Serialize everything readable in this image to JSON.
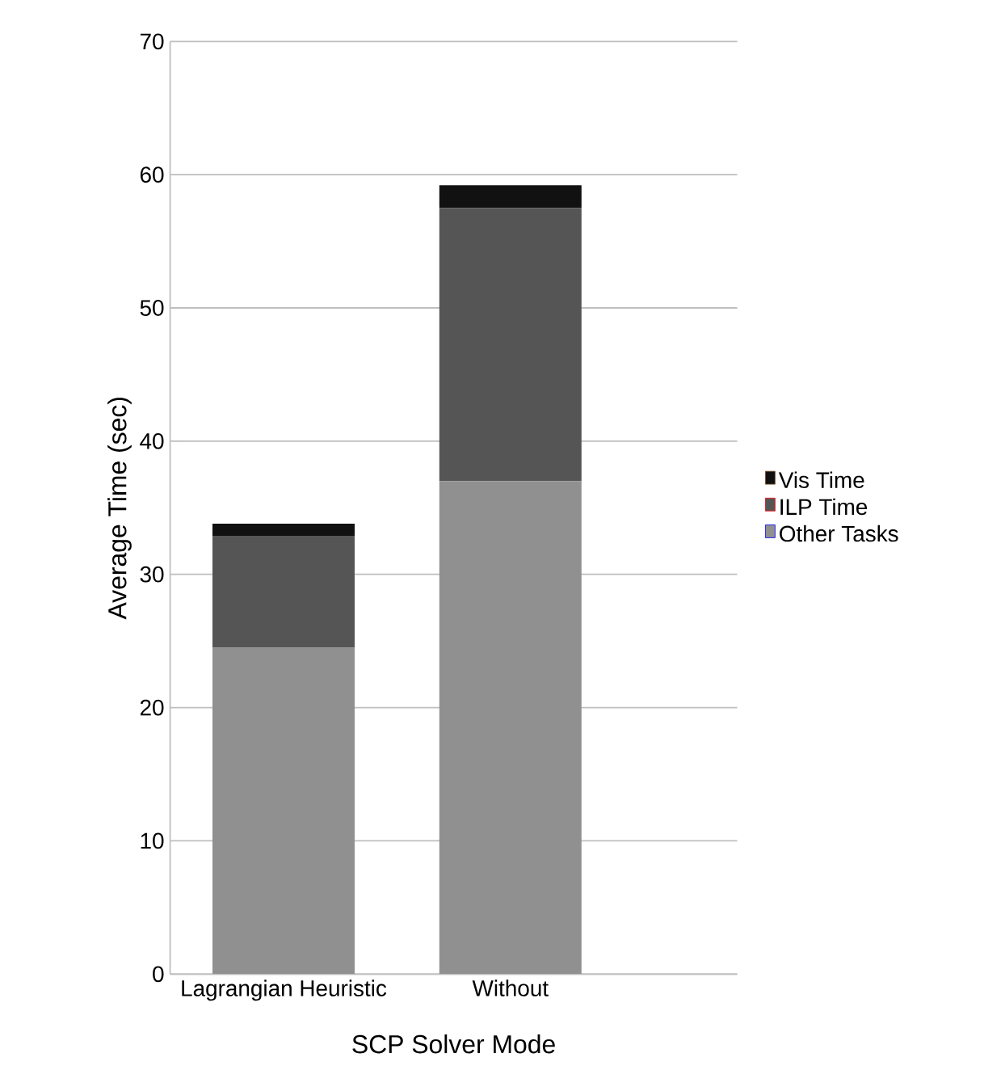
{
  "chart_data": {
    "type": "bar",
    "stacked": true,
    "xlabel": "SCP Solver Mode",
    "ylabel": "Average Time (sec)",
    "categories": [
      "Lagrangian Heuristic",
      "Without"
    ],
    "series": [
      {
        "name": "Other Tasks",
        "color": "#909090",
        "values": [
          24.5,
          37.0
        ]
      },
      {
        "name": "ILP Time",
        "color": "#555555",
        "values": [
          8.4,
          20.5
        ]
      },
      {
        "name": "Vis Time",
        "color": "#111111",
        "values": [
          0.9,
          1.7
        ]
      }
    ],
    "ylim": [
      0,
      70
    ],
    "yticks": [
      0,
      10,
      20,
      30,
      40,
      50,
      60,
      70
    ],
    "grid": "y",
    "legend": "right"
  }
}
